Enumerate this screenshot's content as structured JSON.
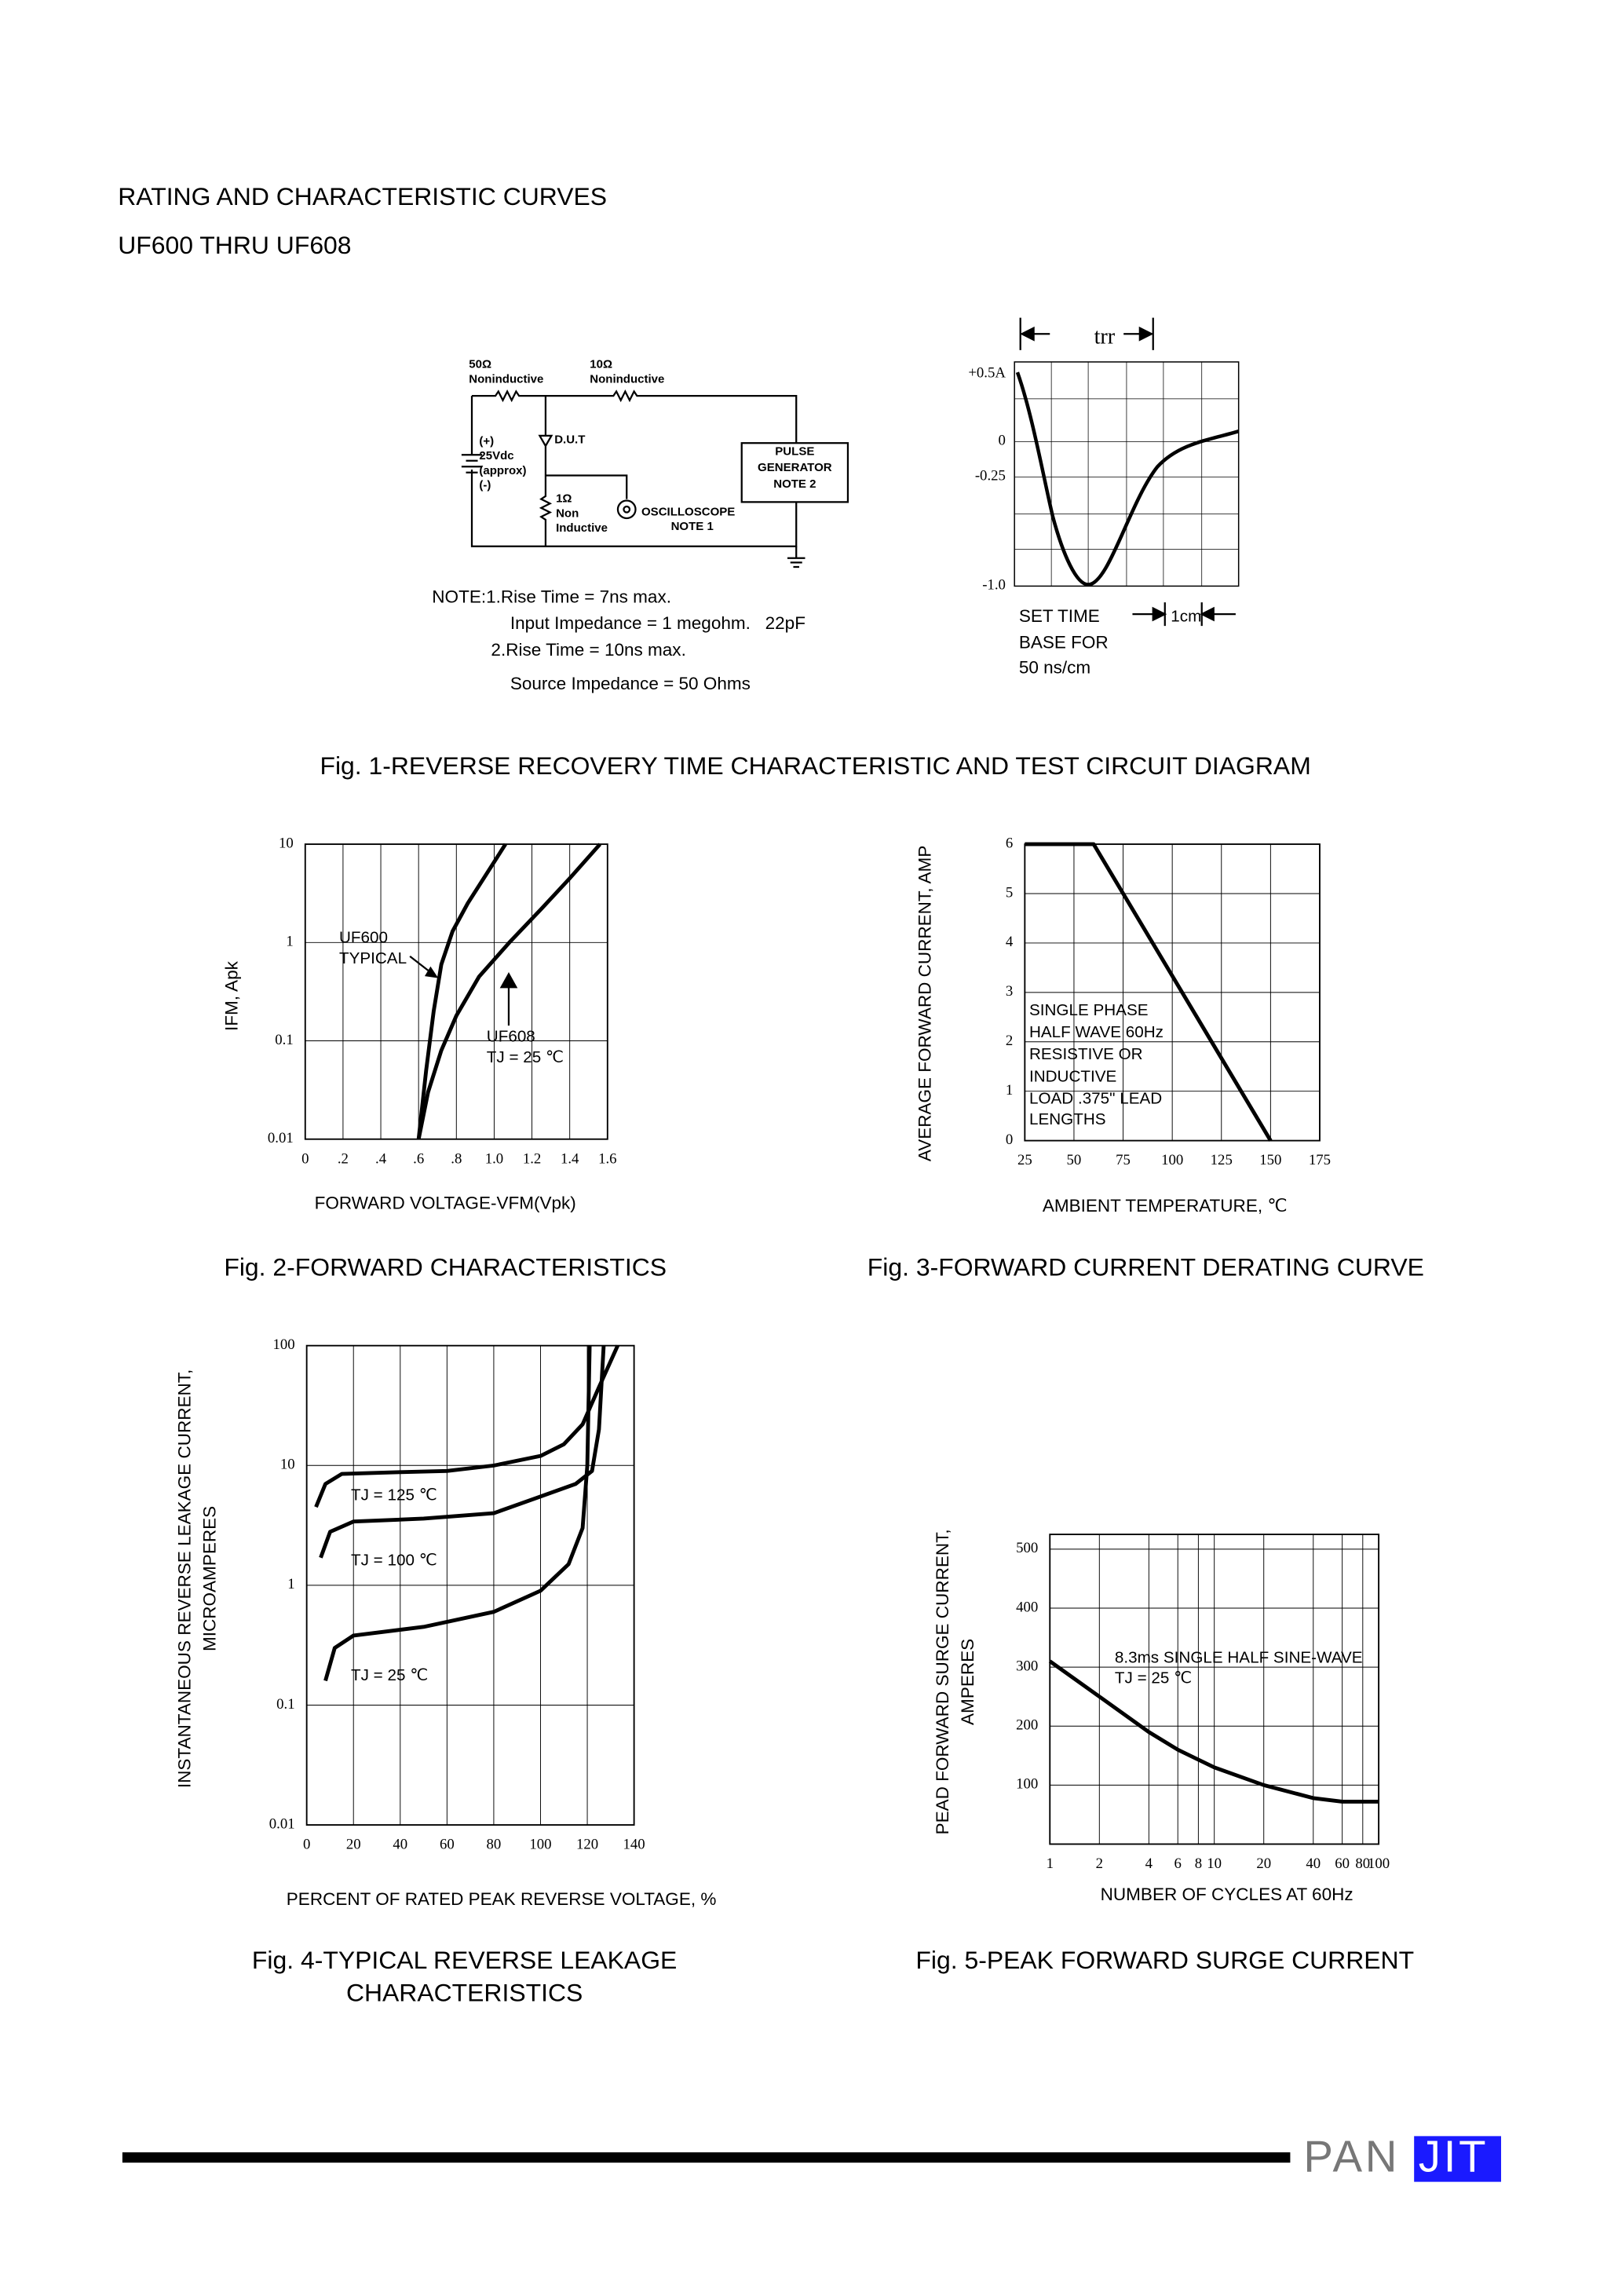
{
  "header": {
    "title": "RATING AND CHARACTERISTIC CURVES",
    "subtitle": "UF600 THRU UF608"
  },
  "figure1": {
    "circuit": {
      "r1": "50Ω",
      "r1_type": "Noninductive",
      "r2": "10Ω",
      "r2_type": "Noninductive",
      "source": [
        "(+)",
        "25Vdc",
        "(approx)",
        "(-)"
      ],
      "dut": "D.U.T",
      "generator": [
        "PULSE",
        "GENERATOR",
        "NOTE 2"
      ],
      "r3": [
        "1Ω",
        "Non",
        "Inductive"
      ],
      "scope": [
        "OSCILLOSCOPE",
        "NOTE 1"
      ]
    },
    "notes": [
      "NOTE:1.Rise Time = 7ns max.",
      "Input Impedance = 1 megohm.   22pF",
      "2.Rise Time = 10ns max.",
      "Source Impedance = 50 Ohms"
    ],
    "waveform": {
      "trr": "trr",
      "y_labels": [
        "+0.5A",
        "0",
        "-0.25",
        "-1.0"
      ],
      "time_base": [
        "SET TIME",
        "BASE FOR",
        "50 ns/cm"
      ],
      "scale": "1cm"
    },
    "caption": "Fig. 1-REVERSE RECOVERY TIME CHARACTERISTIC AND TEST CIRCUIT DIAGRAM"
  },
  "chart_data": [
    {
      "type": "line",
      "caption": "Fig. 2-FORWARD CHARACTERISTICS",
      "x_label": "FORWARD VOLTAGE-VFM(Vpk)",
      "y_label": "IFM, Apk",
      "xlim": [
        0,
        1.6
      ],
      "ylim": [
        0.01,
        10
      ],
      "log_y": true,
      "grid": true,
      "xticks": [
        0,
        {
          "value": 0.2,
          "label": ".2"
        },
        {
          "value": 0.4,
          "label": ".4"
        },
        {
          "value": 0.6,
          "label": ".6"
        },
        {
          "value": 0.8,
          "label": ".8"
        },
        {
          "value": 1,
          "label": "1.0"
        },
        1.2,
        1.4,
        1.6
      ],
      "yticks": [
        0.01,
        0.1,
        1,
        10
      ],
      "series": [
        {
          "name": "UF600",
          "color": "#000000",
          "x": [
            0.6,
            0.64,
            0.68,
            0.72,
            0.78,
            0.86,
            0.96,
            1.06
          ],
          "values": [
            0.01,
            0.05,
            0.2,
            0.6,
            1.3,
            2.5,
            5,
            10
          ]
        },
        {
          "name": "UF608",
          "color": "#000000",
          "x": [
            0.6,
            0.65,
            0.72,
            0.8,
            0.92,
            1.08,
            1.25,
            1.4,
            1.56
          ],
          "values": [
            0.01,
            0.03,
            0.08,
            0.18,
            0.45,
            1,
            2.2,
            4.5,
            10
          ]
        }
      ],
      "annotations": [
        "TYPICAL",
        "TJ = 25 ℃"
      ]
    },
    {
      "type": "line",
      "caption": "Fig. 3-FORWARD CURRENT DERATING CURVE",
      "x_label": "AMBIENT TEMPERATURE, ℃",
      "y_label": "AVERAGE FORWARD CURRENT, AMP",
      "xlim": [
        25,
        175
      ],
      "ylim": [
        0,
        6
      ],
      "grid": true,
      "xticks": [
        25,
        50,
        75,
        100,
        125,
        150,
        175
      ],
      "yticks": [
        0,
        1,
        2,
        3,
        4,
        5,
        6
      ],
      "series": [
        {
          "name": "",
          "color": "#000000",
          "x": [
            25,
            60,
            150
          ],
          "values": [
            6,
            6,
            0
          ]
        }
      ],
      "annotations": [
        "SINGLE PHASE",
        "HALF WAVE 60Hz",
        "RESISTIVE OR",
        "INDUCTIVE",
        "LOAD .375\" LEAD",
        "LENGTHS"
      ]
    },
    {
      "type": "line",
      "caption": [
        "Fig. 4-TYPICAL REVERSE LEAKAGE",
        "CHARACTERISTICS"
      ],
      "x_label": "PERCENT OF RATED PEAK REVERSE VOLTAGE, %",
      "y_label": [
        "INSTANTANEOUS REVERSE LEAKAGE CURRENT,",
        "MICROAMPERES"
      ],
      "xlim": [
        0,
        140
      ],
      "ylim": [
        0.01,
        100
      ],
      "log_y": true,
      "grid": true,
      "xticks": [
        0,
        20,
        40,
        60,
        80,
        100,
        120,
        140
      ],
      "yticks": [
        0.01,
        0.1,
        1,
        10,
        100
      ],
      "series": [
        {
          "name": "TJ = 125 ℃",
          "color": "#000000",
          "x": [
            4,
            8,
            15,
            40,
            60,
            80,
            100,
            110,
            118,
            125,
            133
          ],
          "values": [
            4.5,
            7,
            8.5,
            8.8,
            9,
            10,
            12,
            15,
            22,
            45,
            100
          ]
        },
        {
          "name": "TJ = 100 ℃",
          "color": "#000000",
          "x": [
            6,
            10,
            20,
            50,
            80,
            100,
            115,
            122,
            125,
            127
          ],
          "values": [
            1.7,
            2.8,
            3.4,
            3.6,
            4,
            5.5,
            7,
            9,
            20,
            100
          ]
        },
        {
          "name": "TJ = 25 ℃",
          "color": "#000000",
          "x": [
            8,
            12,
            20,
            50,
            80,
            100,
            112,
            118,
            120,
            121
          ],
          "values": [
            0.16,
            0.3,
            0.38,
            0.45,
            0.6,
            0.9,
            1.5,
            3,
            10,
            100
          ]
        }
      ],
      "annotations": []
    },
    {
      "type": "line",
      "caption": "Fig. 5-PEAK FORWARD SURGE CURRENT",
      "x_label": "NUMBER OF CYCLES AT 60Hz",
      "y_label": [
        "PEAD FORWARD SURGE CURRENT,",
        "AMPERES"
      ],
      "xlim": [
        1,
        100
      ],
      "ylim": [
        0,
        525
      ],
      "log_x": true,
      "grid": true,
      "xticks": [
        1,
        2,
        4,
        6,
        8,
        10,
        20,
        40,
        60,
        80,
        100
      ],
      "yticks": [
        100,
        200,
        300,
        400,
        500
      ],
      "series": [
        {
          "name": "",
          "color": "#000000",
          "x": [
            1,
            2,
            4,
            6,
            10,
            20,
            40,
            60,
            100
          ],
          "values": [
            310,
            250,
            190,
            160,
            130,
            100,
            78,
            72,
            72
          ]
        }
      ],
      "annotations": [
        "8.3ms SINGLE HALF SINE-WAVE",
        "TJ = 25 ℃"
      ]
    }
  ],
  "footer": {
    "logo": [
      "PAN",
      "JIT"
    ]
  }
}
